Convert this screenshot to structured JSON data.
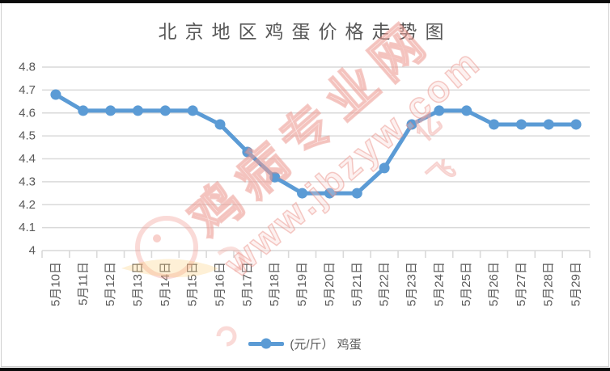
{
  "chart_data": {
    "type": "line",
    "title": "北京地区鸡蛋价格走势图",
    "categories": [
      "5月10日",
      "5月11日",
      "5月12日",
      "5月13日",
      "5月14日",
      "5月15日",
      "5月16日",
      "5月17日",
      "5月18日",
      "5月19日",
      "5月20日",
      "5月21日",
      "5月22日",
      "5月23日",
      "5月24日",
      "5月25日",
      "5月26日",
      "5月27日",
      "5月28日",
      "5月29日"
    ],
    "series": [
      {
        "name": "(元/斤） 鸡蛋",
        "values": [
          4.68,
          4.61,
          4.61,
          4.61,
          4.61,
          4.61,
          4.55,
          4.43,
          4.32,
          4.25,
          4.25,
          4.25,
          4.36,
          4.55,
          4.61,
          4.61,
          4.55,
          4.55,
          4.55,
          4.55
        ]
      }
    ],
    "legend_label": "(元/斤） 鸡蛋",
    "legend_position": "bottom",
    "ylim": [
      4,
      4.8
    ],
    "ytick_step": 0.1,
    "ytick_labels": [
      "4",
      "4.1",
      "4.2",
      "4.3",
      "4.4",
      "4.5",
      "4.6",
      "4.7",
      "4.8"
    ],
    "xlabel": "",
    "ylabel": "",
    "grid": true
  },
  "colors": {
    "line": "#5B9BD5",
    "grid": "#D9D9D9",
    "axis_text": "#595959",
    "title_text": "#575757",
    "watermark": "#E8837A"
  },
  "watermark": {
    "site_name": "鸡病专业网",
    "url": "www.jbzyw.com",
    "fragments": [
      "亿",
      "飞"
    ]
  }
}
